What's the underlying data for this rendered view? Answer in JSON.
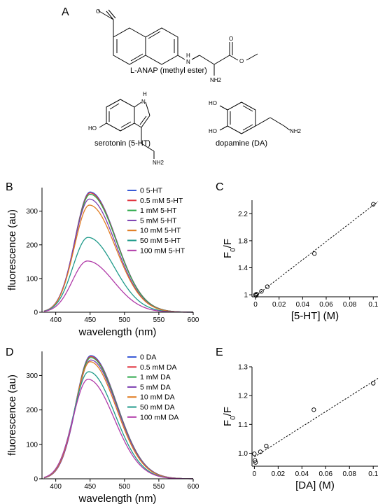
{
  "panel_a": {
    "letter": "A",
    "molecules": [
      {
        "name": "L-ANAP (methyl ester)",
        "atoms": {
          "o_acetyl": "O",
          "nh": "H",
          "nh_n": "N",
          "o_carbonyl": "O",
          "o_ester": "O",
          "nh2": "NH2"
        }
      },
      {
        "name": "serotonin (5-HT)",
        "atoms": {
          "nh_h": "H",
          "nh_n": "N",
          "ho": "HO",
          "nh2": "NH2"
        }
      },
      {
        "name": "dopamine (DA)",
        "atoms": {
          "ho_top": "HO",
          "ho_bottom": "HO",
          "nh2": "NH2"
        }
      }
    ]
  },
  "chart_data": [
    {
      "panel": "B",
      "type": "line",
      "xlabel": "wavelength (nm)",
      "ylabel": "fluorescence (au)",
      "xlim": [
        380,
        600
      ],
      "ylim": [
        0,
        370
      ],
      "xticks": [
        400,
        450,
        500,
        550,
        600
      ],
      "yticks": [
        0,
        100,
        200,
        300
      ],
      "legend_position": "top-right",
      "series": [
        {
          "name": "0 5-HT",
          "color": "#3b5bd6",
          "peak_x": 450,
          "peak_y": 357
        },
        {
          "name": "0.5 mM 5-HT",
          "color": "#e0343e",
          "peak_x": 450,
          "peak_y": 354
        },
        {
          "name": "1 mM 5-HT",
          "color": "#2ca84a",
          "peak_x": 450,
          "peak_y": 350
        },
        {
          "name": "5 mM 5-HT",
          "color": "#7b3fb0",
          "peak_x": 449,
          "peak_y": 336
        },
        {
          "name": "10 mM 5-HT",
          "color": "#e07b20",
          "peak_x": 449,
          "peak_y": 318
        },
        {
          "name": "50 mM 5-HT",
          "color": "#1f9a8a",
          "peak_x": 447,
          "peak_y": 222
        },
        {
          "name": "100 mM 5-HT",
          "color": "#b03aa8",
          "peak_x": 446,
          "peak_y": 152
        }
      ]
    },
    {
      "panel": "C",
      "type": "scatter",
      "xlabel": "[5-HT] (M)",
      "ylabel_main": "F",
      "ylabel_sub": "0",
      "ylabel_tail": "/F",
      "xlim": [
        -0.003,
        0.104
      ],
      "ylim": [
        0.97,
        2.4
      ],
      "xticks": [
        "0",
        "0.02",
        "0.04",
        "0.06",
        "0.08",
        "0.1"
      ],
      "yticks": [
        "1",
        "1.4",
        "1.8",
        "2.2"
      ],
      "x": [
        0,
        0.0005,
        0.001,
        0.005,
        0.01,
        0.05,
        0.1
      ],
      "y": [
        1.0,
        0.99,
        1.01,
        1.05,
        1.12,
        1.61,
        2.34
      ],
      "fit_line": {
        "x": [
          0,
          0.104
        ],
        "y": [
          0.98,
          2.38
        ]
      }
    },
    {
      "panel": "D",
      "type": "line",
      "xlabel": "wavelength (nm)",
      "ylabel": "fluorescence (au)",
      "xlim": [
        380,
        600
      ],
      "ylim": [
        0,
        370
      ],
      "xticks": [
        400,
        450,
        500,
        550,
        600
      ],
      "yticks": [
        0,
        100,
        200,
        300
      ],
      "legend_position": "top-right",
      "series": [
        {
          "name": "0 DA",
          "color": "#3b5bd6",
          "peak_x": 451,
          "peak_y": 358
        },
        {
          "name": "0.5 mM DA",
          "color": "#e0343e",
          "peak_x": 451,
          "peak_y": 355
        },
        {
          "name": "1 mM DA",
          "color": "#2ca84a",
          "peak_x": 451,
          "peak_y": 352
        },
        {
          "name": "5 mM DA",
          "color": "#7b3fb0",
          "peak_x": 451,
          "peak_y": 345
        },
        {
          "name": "10 mM DA",
          "color": "#e07b20",
          "peak_x": 450,
          "peak_y": 340
        },
        {
          "name": "50 mM DA",
          "color": "#1f9a8a",
          "peak_x": 448,
          "peak_y": 311
        },
        {
          "name": "100 mM DA",
          "color": "#b03aa8",
          "peak_x": 447,
          "peak_y": 289
        }
      ]
    },
    {
      "panel": "E",
      "type": "scatter",
      "xlabel": "[DA] (M)",
      "ylabel_main": "F",
      "ylabel_sub": "0",
      "ylabel_tail": "/F",
      "xlim": [
        -0.002,
        0.104
      ],
      "ylim": [
        0.955,
        1.3
      ],
      "xticks": [
        "0",
        "0.02",
        "0.04",
        "0.06",
        "0.08",
        "0.1"
      ],
      "yticks": [
        "1.0",
        "1.1",
        "1.2",
        "1.3"
      ],
      "x": [
        0,
        0.0005,
        0.001,
        0.005,
        0.01,
        0.05,
        0.1
      ],
      "y": [
        0.998,
        0.975,
        0.968,
        1.005,
        1.025,
        1.151,
        1.243
      ],
      "fit_line": {
        "x": [
          0,
          0.104
        ],
        "y": [
          0.987,
          1.26
        ]
      }
    }
  ]
}
